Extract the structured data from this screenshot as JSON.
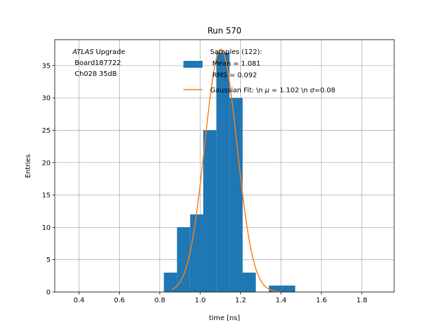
{
  "chart_data": {
    "type": "histogram",
    "title": "Run 570",
    "xlabel": "time [ns]",
    "ylabel": "Entries",
    "xlim": [
      0.28,
      1.96
    ],
    "ylim": [
      0,
      39
    ],
    "grid": true,
    "xticks": [
      "0.4",
      "0.6",
      "0.8",
      "1.0",
      "1.2",
      "1.4",
      "1.6",
      "1.8"
    ],
    "xtick_values": [
      0.4,
      0.6,
      0.8,
      1.0,
      1.2,
      1.4,
      1.6,
      1.8
    ],
    "yticks": [
      "0",
      "5",
      "10",
      "15",
      "20",
      "25",
      "30",
      "35"
    ],
    "ytick_values": [
      0,
      5,
      10,
      15,
      20,
      25,
      30,
      35
    ],
    "bins": [
      {
        "x0": 0.82,
        "x1": 0.885,
        "count": 3
      },
      {
        "x0": 0.885,
        "x1": 0.95,
        "count": 10
      },
      {
        "x0": 0.95,
        "x1": 1.015,
        "count": 12
      },
      {
        "x0": 1.015,
        "x1": 1.08,
        "count": 25
      },
      {
        "x0": 1.08,
        "x1": 1.145,
        "count": 37
      },
      {
        "x0": 1.145,
        "x1": 1.21,
        "count": 30
      },
      {
        "x0": 1.21,
        "x1": 1.275,
        "count": 3
      },
      {
        "x0": 1.275,
        "x1": 1.34,
        "count": 0
      },
      {
        "x0": 1.34,
        "x1": 1.405,
        "count": 1
      },
      {
        "x0": 1.405,
        "x1": 1.47,
        "count": 1
      }
    ],
    "fit": {
      "mu": 1.102,
      "sigma": 0.08,
      "amplitude": 37.5,
      "x_range": [
        0.86,
        1.4
      ]
    },
    "series_colors": {
      "histogram": "#1f77b4",
      "fit": "#ff7f0e"
    },
    "annotation": {
      "line1_italic": "ATLAS",
      "line1_rest": " Upgrade",
      "line2": " Board187722",
      "line3": " Ch028 35dB"
    },
    "legend": {
      "position": "top-center",
      "hist_lines": [
        "Samples (122):",
        " Mean = 1.081",
        " RMS = 0.092"
      ],
      "fit_label_parts": [
        "Gaussian Fit: \\n ",
        "μ",
        " = 1.102 \\n ",
        "σ",
        "=0.08"
      ]
    }
  }
}
